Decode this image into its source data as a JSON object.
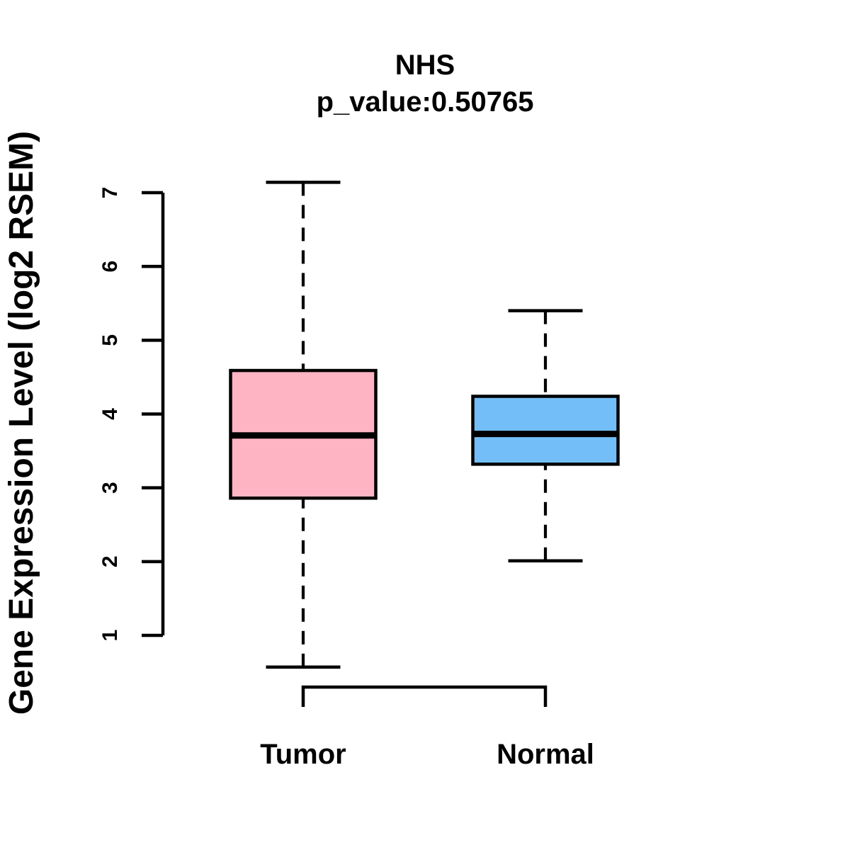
{
  "figure": {
    "title": "NHS",
    "subtitle": "p_value:0.50765"
  },
  "chart_data": {
    "type": "boxplot",
    "title": "NHS",
    "subtitle": "p_value:0.50765",
    "ylabel": "Gene Expression Level (log2 RSEM)",
    "xlabel": "",
    "ylim": [
      1,
      7
    ],
    "y_ticks": [
      1,
      2,
      3,
      4,
      5,
      6,
      7
    ],
    "grid": false,
    "legend": "none",
    "categories": [
      "Tumor",
      "Normal"
    ],
    "series": [
      {
        "name": "Tumor",
        "fill_color": "#FFB4C4",
        "stats": {
          "lower_whisker": 0.57,
          "q1": 2.86,
          "median": 3.71,
          "q3": 4.59,
          "upper_whisker": 7.14
        }
      },
      {
        "name": "Normal",
        "fill_color": "#73BEF8",
        "stats": {
          "lower_whisker": 2.01,
          "q1": 3.32,
          "median": 3.73,
          "q3": 4.24,
          "upper_whisker": 5.4
        }
      }
    ],
    "line_color": "#000000",
    "background_color": "#FFFFFF"
  }
}
